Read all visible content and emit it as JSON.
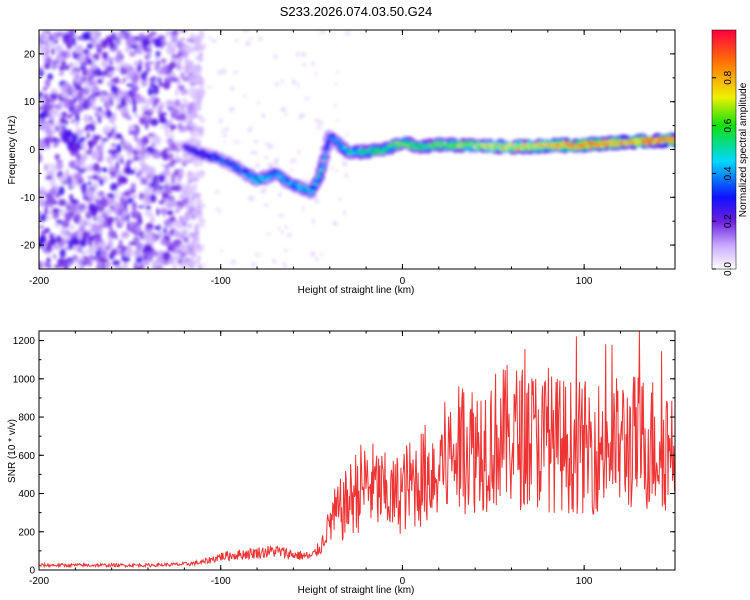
{
  "title": "S233.2026.074.03.50.G24",
  "chart_data": [
    {
      "type": "heatmap",
      "xlabel": "Height of straight line (km)",
      "ylabel": "Frequency (Hz)",
      "xlim": [
        -200,
        150
      ],
      "ylim": [
        -25,
        25
      ],
      "xticks": [
        -200,
        -100,
        0,
        100
      ],
      "yticks": [
        -20,
        -10,
        0,
        10,
        20
      ],
      "colorbar": {
        "label": "Normalized spectral amplitude",
        "range": [
          0,
          1
        ],
        "ticks": [
          0.0,
          0.2,
          0.4,
          0.6,
          0.8
        ],
        "tick_labels": [
          "0.0",
          "0.2",
          "0.4",
          "0.6",
          "0.8"
        ]
      },
      "ridge": {
        "x": [
          -120,
          -110,
          -100,
          -90,
          -80,
          -70,
          -60,
          -50,
          -45,
          -40,
          -35,
          -30,
          -20,
          -10,
          0,
          10,
          20,
          40,
          60,
          80,
          100,
          120,
          150
        ],
        "freq": [
          0.5,
          -1,
          -2,
          -4,
          -6.5,
          -5,
          -7.5,
          -9,
          -5,
          3,
          1,
          -0.5,
          -0.5,
          0,
          1.5,
          0.5,
          1,
          0.8,
          0.5,
          0.8,
          1,
          1.5,
          2
        ],
        "amplitude": [
          0.25,
          0.3,
          0.35,
          0.35,
          0.45,
          0.4,
          0.4,
          0.45,
          0.5,
          0.35,
          0.4,
          0.45,
          0.55,
          0.55,
          0.6,
          0.55,
          0.6,
          0.65,
          0.7,
          0.75,
          0.85,
          0.8,
          0.85
        ]
      },
      "noise_region_x": [
        -200,
        -110
      ]
    },
    {
      "type": "line",
      "xlabel": "Height of straight line (km)",
      "ylabel": "SNR (10 * v/v)",
      "xlim": [
        -200,
        150
      ],
      "ylim": [
        0,
        1250
      ],
      "xticks": [
        -200,
        -100,
        0,
        100
      ],
      "yticks": [
        0,
        200,
        400,
        600,
        800,
        1000,
        1200
      ],
      "color": "#ee3333",
      "x": [
        -200,
        -180,
        -160,
        -140,
        -120,
        -110,
        -100,
        -90,
        -80,
        -70,
        -60,
        -50,
        -45,
        -40,
        -35,
        -30,
        -25,
        -20,
        -15,
        -10,
        -5,
        0,
        10,
        20,
        30,
        40,
        50,
        60,
        70,
        80,
        90,
        100,
        110,
        120,
        130,
        140,
        150
      ],
      "y": [
        25,
        25,
        25,
        25,
        30,
        40,
        70,
        80,
        90,
        100,
        80,
        70,
        120,
        250,
        300,
        350,
        420,
        450,
        430,
        400,
        380,
        420,
        480,
        550,
        620,
        650,
        680,
        700,
        690,
        670,
        650,
        640,
        650,
        660,
        670,
        660,
        650
      ]
    }
  ]
}
